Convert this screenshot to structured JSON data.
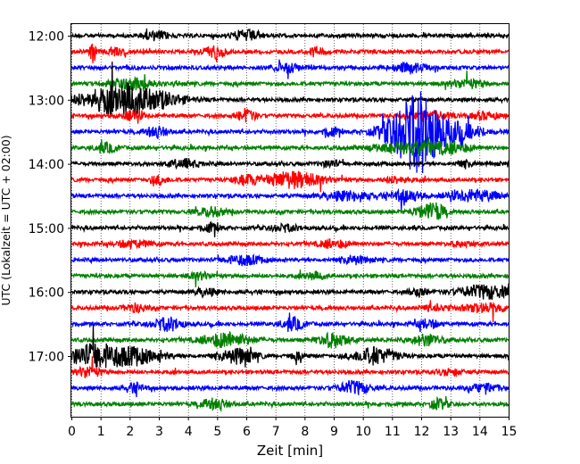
{
  "chart_data": {
    "type": "line",
    "title": "",
    "xlabel": "Zeit  [min]",
    "ylabel": "UTC (Lokalzeit = UTC + 02:00)",
    "xlim": [
      0,
      15
    ],
    "x_ticks": [
      "0",
      "1",
      "2",
      "3",
      "4",
      "5",
      "6",
      "7",
      "8",
      "9",
      "10",
      "11",
      "12",
      "13",
      "14",
      "15"
    ],
    "y_ticks": [
      {
        "label": "12:00",
        "trace": 0
      },
      {
        "label": "13:00",
        "trace": 4
      },
      {
        "label": "14:00",
        "trace": 8
      },
      {
        "label": "15:00",
        "trace": 12
      },
      {
        "label": "16:00",
        "trace": 16
      },
      {
        "label": "17:00",
        "trace": 20
      }
    ],
    "grid": {
      "x": true,
      "y": false,
      "style": "dotted"
    },
    "colors": {
      "black": "#000000",
      "red": "#ff0000",
      "blue": "#0000ff",
      "green": "#008000"
    },
    "series": [
      {
        "start": "12:00",
        "color": "black",
        "events": [
          [
            2.9,
            0.5,
            0.5
          ],
          [
            6.0,
            0.6,
            0.5
          ]
        ]
      },
      {
        "start": "12:15",
        "color": "red",
        "events": [
          [
            0.7,
            1.3,
            0.12
          ],
          [
            1.5,
            0.5,
            0.3
          ],
          [
            4.9,
            0.7,
            0.4
          ],
          [
            8.4,
            0.4,
            0.3
          ]
        ]
      },
      {
        "start": "12:30",
        "color": "blue",
        "events": [
          [
            7.4,
            0.5,
            0.5
          ],
          [
            11.6,
            0.5,
            0.6
          ]
        ]
      },
      {
        "start": "12:45",
        "color": "green",
        "events": [
          [
            1.8,
            0.4,
            0.6
          ],
          [
            2.3,
            0.5,
            0.6
          ],
          [
            13.6,
            0.5,
            0.6
          ]
        ]
      },
      {
        "start": "13:00",
        "color": "black",
        "events": [
          [
            1.0,
            1.0,
            1.0
          ],
          [
            2.6,
            1.3,
            1.1
          ],
          [
            1.7,
            0.7,
            0.6
          ]
        ]
      },
      {
        "start": "13:15",
        "color": "red",
        "events": [
          [
            2.1,
            0.5,
            0.4
          ],
          [
            6.0,
            0.8,
            0.3
          ],
          [
            12.3,
            0.5,
            0.7
          ],
          [
            14.2,
            0.4,
            0.5
          ]
        ]
      },
      {
        "start": "13:30",
        "color": "blue",
        "events": [
          [
            11.7,
            3.6,
            0.9
          ],
          [
            12.0,
            1.6,
            0.5
          ],
          [
            13.1,
            1.0,
            1.0
          ],
          [
            2.9,
            0.6,
            0.4
          ],
          [
            8.9,
            0.5,
            0.3
          ]
        ]
      },
      {
        "start": "13:45",
        "color": "green",
        "events": [
          [
            1.2,
            0.5,
            0.4
          ],
          [
            11.8,
            0.8,
            1.3
          ],
          [
            13.2,
            0.4,
            0.5
          ]
        ]
      },
      {
        "start": "14:00",
        "color": "black",
        "events": [
          [
            3.9,
            0.5,
            0.5
          ],
          [
            8.9,
            0.4,
            0.3
          ],
          [
            13.5,
            0.3,
            0.3
          ]
        ]
      },
      {
        "start": "14:15",
        "color": "red",
        "events": [
          [
            7.6,
            1.0,
            1.0
          ],
          [
            3.0,
            0.5,
            0.3
          ],
          [
            6.0,
            0.5,
            0.4
          ],
          [
            11.2,
            0.4,
            0.4
          ]
        ]
      },
      {
        "start": "14:30",
        "color": "blue",
        "events": [
          [
            9.5,
            0.5,
            0.9
          ],
          [
            11.5,
            0.7,
            0.5
          ],
          [
            13.8,
            0.7,
            0.8
          ]
        ]
      },
      {
        "start": "14:45",
        "color": "green",
        "events": [
          [
            4.8,
            0.5,
            0.5
          ],
          [
            12.5,
            0.9,
            0.35
          ],
          [
            12.0,
            0.5,
            0.4
          ]
        ]
      },
      {
        "start": "15:00",
        "color": "black",
        "events": [
          [
            4.8,
            0.5,
            0.3
          ],
          [
            7.3,
            0.4,
            0.5
          ]
        ]
      },
      {
        "start": "15:15",
        "color": "red",
        "events": [
          [
            2.1,
            0.4,
            0.6
          ],
          [
            9.0,
            0.5,
            0.5
          ],
          [
            13.4,
            0.3,
            0.4
          ]
        ]
      },
      {
        "start": "15:30",
        "color": "blue",
        "events": [
          [
            5.9,
            0.6,
            0.6
          ],
          [
            9.7,
            0.5,
            0.4
          ]
        ]
      },
      {
        "start": "15:45",
        "color": "green",
        "events": [
          [
            4.4,
            0.4,
            0.4
          ],
          [
            8.3,
            0.4,
            0.4
          ]
        ]
      },
      {
        "start": "16:00",
        "color": "black",
        "events": [
          [
            4.6,
            0.4,
            0.4
          ],
          [
            11.9,
            0.5,
            0.3
          ],
          [
            14.2,
            0.8,
            0.9
          ]
        ]
      },
      {
        "start": "16:15",
        "color": "red",
        "events": [
          [
            2.2,
            0.5,
            0.4
          ],
          [
            12.5,
            0.4,
            0.4
          ],
          [
            14.3,
            0.5,
            0.9
          ]
        ]
      },
      {
        "start": "16:30",
        "color": "blue",
        "events": [
          [
            3.3,
            0.8,
            0.5
          ],
          [
            7.6,
            0.7,
            0.4
          ],
          [
            12.2,
            0.5,
            0.4
          ]
        ]
      },
      {
        "start": "16:45",
        "color": "green",
        "events": [
          [
            5.3,
            0.9,
            0.8
          ],
          [
            9.0,
            0.9,
            0.5
          ],
          [
            12.2,
            0.7,
            0.5
          ]
        ]
      },
      {
        "start": "17:00",
        "color": "black",
        "events": [
          [
            1.6,
            1.2,
            1.3
          ],
          [
            0.6,
            0.8,
            0.6
          ],
          [
            5.7,
            0.9,
            0.6
          ],
          [
            10.4,
            1.0,
            0.7
          ],
          [
            7.8,
            0.4,
            0.3
          ]
        ]
      },
      {
        "start": "17:15",
        "color": "red",
        "events": [
          [
            0.6,
            0.7,
            0.4
          ],
          [
            13.0,
            0.4,
            0.4
          ]
        ]
      },
      {
        "start": "17:30",
        "color": "blue",
        "events": [
          [
            2.2,
            0.5,
            0.3
          ],
          [
            9.7,
            0.8,
            0.5
          ],
          [
            14.2,
            0.5,
            0.5
          ]
        ]
      },
      {
        "start": "17:45",
        "color": "green",
        "events": [
          [
            4.9,
            0.6,
            0.5
          ],
          [
            12.6,
            0.6,
            0.3
          ]
        ]
      }
    ]
  }
}
